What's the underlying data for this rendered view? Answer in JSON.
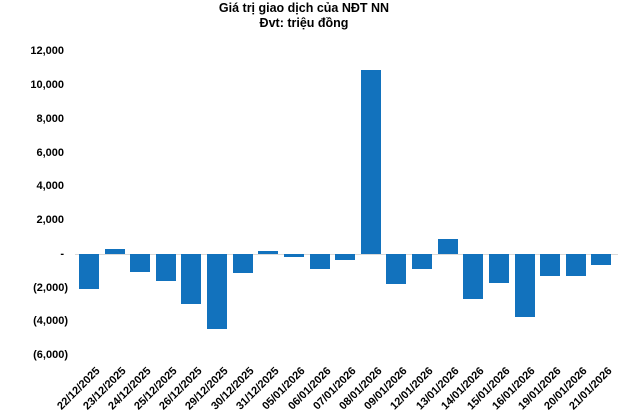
{
  "chart_data": {
    "type": "bar",
    "title": "Giá trị giao dịch của NĐT NN",
    "subtitle": "Đvt: triệu đồng",
    "xlabel": "",
    "ylabel": "",
    "ylim": [
      -6000,
      12000
    ],
    "grid": "zero-line-only",
    "legend_position": "none",
    "bar_color": "#1272BD",
    "gridline_color": "#D9D9D9",
    "categories": [
      "22/12/2025",
      "23/12/2025",
      "24/12/2025",
      "25/12/2025",
      "26/12/2025",
      "29/12/2025",
      "30/12/2025",
      "31/12/2025",
      "05/01/2026",
      "06/01/2026",
      "07/01/2026",
      "08/01/2026",
      "09/01/2026",
      "12/01/2026",
      "13/01/2026",
      "14/01/2026",
      "15/01/2026",
      "16/01/2026",
      "19/01/2026",
      "20/01/2026",
      "21/01/2026"
    ],
    "values": [
      -2070,
      300,
      -1050,
      -1560,
      -2950,
      -4430,
      -1120,
      200,
      -150,
      -880,
      -330,
      10900,
      -1750,
      -850,
      930,
      -2630,
      -1720,
      -3720,
      -1290,
      -1300,
      -620
    ],
    "y_ticks": [
      {
        "value": 12000,
        "label": "12,000"
      },
      {
        "value": 10000,
        "label": "10,000"
      },
      {
        "value": 8000,
        "label": "8,000"
      },
      {
        "value": 6000,
        "label": "6,000"
      },
      {
        "value": 4000,
        "label": "4,000"
      },
      {
        "value": 2000,
        "label": "2,000"
      },
      {
        "value": 0,
        "label": "-"
      },
      {
        "value": -2000,
        "label": "(2,000)"
      },
      {
        "value": -4000,
        "label": "(4,000)"
      },
      {
        "value": -6000,
        "label": "(6,000)"
      }
    ]
  }
}
